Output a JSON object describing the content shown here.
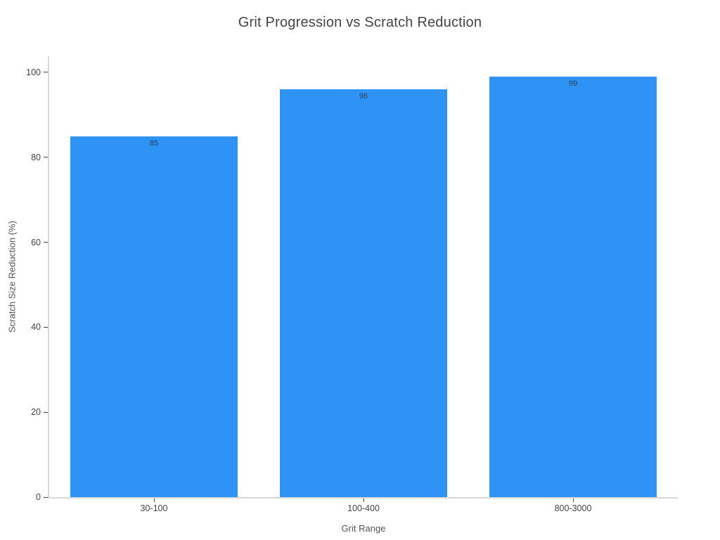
{
  "chart_data": {
    "type": "bar",
    "title": "Grit Progression vs Scratch Reduction",
    "categories": [
      "30-100",
      "100-400",
      "800-3000"
    ],
    "values": [
      85,
      96,
      99
    ],
    "value_labels": [
      "85",
      "96",
      "99"
    ],
    "xlabel": "Grit Range",
    "ylabel": "Scratch Size Reduction (%)",
    "yticks": [
      0,
      20,
      40,
      60,
      80,
      100
    ],
    "ylim": [
      0,
      103.8
    ],
    "grid": false,
    "legend": false,
    "bar_color": "#2E93F5",
    "value_label_color": "#2a3f5f",
    "axis_line_color": "#d8d8d8",
    "tick_mark_color": "#444444",
    "tick_label_color": "#444444",
    "axis_title_color": "#555555",
    "title_color": "#444444",
    "background_color": "#ffffff"
  }
}
